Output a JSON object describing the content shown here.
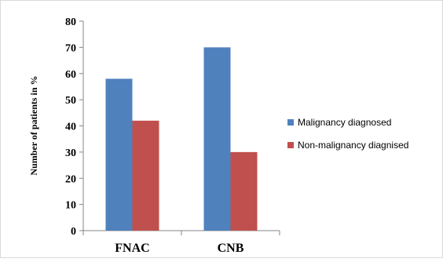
{
  "chart_data": {
    "type": "bar",
    "title": "",
    "xlabel": "",
    "ylabel": "Number of patients in %",
    "categories": [
      "FNAC",
      "CNB"
    ],
    "series": [
      {
        "name": "Malignancy diagnosed",
        "values": [
          58,
          70
        ],
        "color": "#4F81BD"
      },
      {
        "name": "Non-malignancy diagnised",
        "values": [
          42,
          30
        ],
        "color": "#C0504D"
      }
    ],
    "ylim": [
      0,
      80
    ],
    "yticks": [
      0,
      10,
      20,
      30,
      40,
      50,
      60,
      70,
      80
    ],
    "grid": false,
    "legend_position": "right"
  }
}
